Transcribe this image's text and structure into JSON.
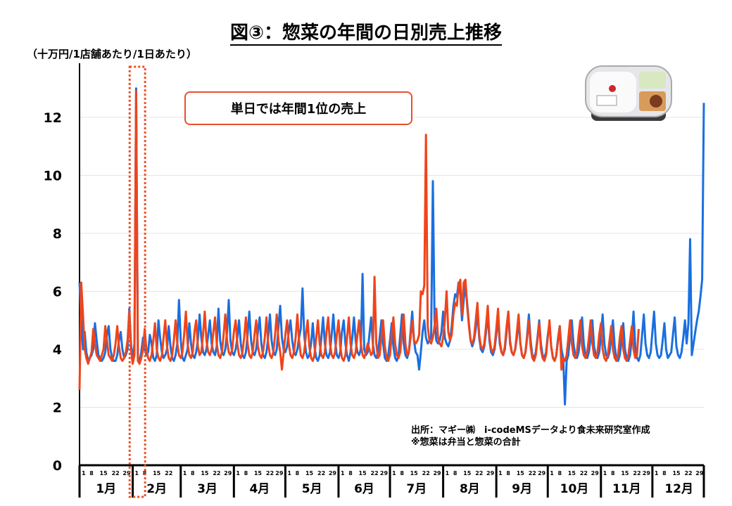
{
  "title": "図③：惣菜の年間の日別売上推移",
  "unit_label": "（十万円/1店舗あたり/1日あたり）",
  "annotation": "単日では年間1位の売上",
  "source": {
    "line1": "出所：マギー㈱　i-codeMSデータより食未来研究室作成",
    "line2": "※惣菜は弁当と惣菜の合計"
  },
  "colors": {
    "blue": "#1a6fe0",
    "orange": "#f0441a",
    "highlight": "#e8502a"
  },
  "chart_data": {
    "type": "line",
    "title": "図③：惣菜の年間の日別売上推移",
    "ylabel": "（十万円/1店舗あたり/1日あたり）",
    "xlabel": "",
    "ylim": [
      0,
      13.2
    ],
    "yticks": [
      0,
      2,
      4,
      6,
      8,
      10,
      12
    ],
    "xlim": [
      1,
      365
    ],
    "grid": "horizontal-faint",
    "legend": "none",
    "months": [
      "1月",
      "2月",
      "3月",
      "4月",
      "5月",
      "6月",
      "7月",
      "8月",
      "9月",
      "10月",
      "11月",
      "12月"
    ],
    "month_start_days": [
      1,
      32,
      60,
      91,
      121,
      152,
      182,
      213,
      244,
      274,
      305,
      335
    ],
    "day_tick_labels": [
      "1",
      "8",
      "15",
      "22",
      "29"
    ],
    "highlight_days": [
      29,
      38
    ],
    "series": [
      {
        "name": "blue",
        "color": "#1a6fe0",
        "values": [
          6.3,
          5.0,
          4.0,
          4.6,
          3.9,
          3.6,
          3.7,
          3.8,
          4.0,
          4.9,
          4.3,
          3.8,
          3.7,
          3.6,
          3.7,
          3.9,
          4.5,
          4.8,
          4.0,
          3.7,
          3.6,
          3.6,
          3.8,
          4.3,
          4.6,
          4.0,
          3.7,
          3.8,
          4.0,
          5.4,
          4.2,
          3.6,
          4.2,
          13.0,
          3.7,
          3.6,
          3.9,
          4.4,
          4.0,
          3.8,
          3.9,
          4.5,
          4.2,
          3.7,
          3.6,
          3.8,
          5.0,
          4.4,
          3.9,
          3.7,
          3.8,
          4.0,
          4.8,
          4.1,
          3.7,
          3.6,
          3.8,
          4.2,
          5.7,
          4.3,
          3.7,
          3.6,
          3.8,
          4.0,
          4.9,
          4.2,
          3.8,
          3.7,
          3.9,
          4.3,
          5.2,
          4.4,
          3.9,
          3.8,
          4.0,
          4.5,
          5.0,
          4.2,
          3.9,
          3.8,
          4.1,
          5.4,
          4.3,
          3.9,
          3.8,
          4.0,
          4.6,
          5.7,
          4.3,
          3.9,
          3.8,
          4.0,
          4.4,
          5.0,
          4.2,
          3.8,
          3.7,
          3.9,
          4.5,
          5.3,
          4.3,
          3.9,
          3.8,
          4.0,
          4.6,
          5.1,
          4.2,
          3.8,
          3.7,
          3.9,
          4.4,
          5.2,
          4.3,
          3.9,
          3.8,
          4.0,
          4.8,
          5.5,
          4.4,
          4.0,
          3.9,
          4.1,
          4.6,
          5.0,
          4.3,
          3.9,
          3.8,
          4.0,
          4.4,
          4.7,
          6.1,
          4.5,
          3.9,
          3.7,
          3.8,
          4.2,
          4.9,
          4.1,
          3.7,
          3.6,
          3.8,
          4.4,
          5.1,
          4.2,
          3.8,
          3.7,
          3.9,
          4.5,
          5.2,
          4.3,
          3.8,
          3.7,
          3.9,
          4.6,
          5.0,
          4.2,
          3.8,
          3.6,
          3.9,
          4.4,
          5.1,
          4.3,
          3.9,
          3.8,
          4.0,
          6.6,
          4.0,
          3.8,
          3.9,
          4.5,
          5.1,
          4.2,
          3.8,
          3.7,
          3.9,
          4.4,
          5.0,
          4.2,
          3.7,
          3.6,
          3.8,
          4.3,
          4.9,
          4.1,
          3.7,
          3.6,
          3.8,
          4.5,
          5.2,
          4.2,
          3.8,
          3.7,
          3.9,
          4.6,
          5.3,
          4.3,
          3.9,
          3.8,
          3.3,
          3.9,
          4.6,
          5.0,
          4.4,
          4.2,
          4.3,
          4.4,
          9.8,
          5.0,
          4.3,
          4.2,
          4.3,
          4.6,
          5.3,
          4.4,
          4.2,
          4.1,
          4.3,
          4.8,
          5.5,
          5.9,
          5.8,
          6.3,
          5.9,
          5.0,
          5.7,
          6.2,
          5.6,
          4.9,
          4.3,
          4.1,
          4.3,
          4.7,
          5.3,
          4.4,
          4.0,
          3.9,
          4.1,
          4.6,
          5.2,
          4.3,
          3.9,
          3.8,
          4.0,
          4.5,
          5.1,
          4.2,
          3.9,
          3.8,
          4.0,
          4.6,
          5.3,
          4.3,
          3.9,
          3.8,
          4.0,
          4.4,
          5.0,
          4.2,
          3.8,
          3.7,
          3.9,
          4.5,
          5.2,
          4.3,
          3.8,
          3.7,
          3.9,
          4.4,
          5.0,
          4.2,
          3.8,
          3.7,
          3.9,
          4.5,
          4.9,
          4.1,
          3.7,
          3.6,
          3.8,
          4.4,
          4.8,
          4.0,
          3.7,
          2.1,
          3.6,
          3.8,
          4.5,
          5.0,
          4.2,
          3.8,
          3.7,
          3.9,
          4.5,
          5.1,
          4.2,
          3.8,
          3.7,
          3.9,
          4.4,
          5.0,
          4.1,
          3.8,
          3.7,
          3.9,
          4.5,
          5.2,
          4.2,
          3.8,
          3.7,
          3.9,
          4.4,
          5.0,
          4.1,
          3.7,
          3.6,
          3.8,
          4.3,
          4.9,
          4.0,
          3.7,
          3.6,
          3.8,
          4.4,
          5.3,
          4.1,
          3.7,
          3.6,
          3.8,
          4.5,
          5.2,
          4.2,
          3.8,
          3.7,
          3.9,
          4.6,
          5.3,
          4.2,
          3.8,
          3.7,
          3.8,
          4.3,
          4.9,
          4.0,
          3.7,
          3.8,
          3.9,
          4.5,
          5.1,
          4.1,
          3.8,
          3.7,
          3.9,
          4.4,
          5.0,
          4.2,
          4.9,
          7.8,
          3.8,
          4.2,
          4.6,
          5.0,
          5.3,
          5.8,
          6.4,
          12.5
        ]
      },
      {
        "name": "orange",
        "color": "#f0441a",
        "values": [
          2.6,
          6.3,
          5.2,
          4.0,
          3.7,
          3.5,
          3.7,
          3.9,
          4.7,
          4.2,
          3.8,
          3.7,
          3.6,
          3.8,
          4.0,
          4.8,
          4.3,
          3.8,
          3.7,
          3.6,
          3.8,
          4.2,
          4.8,
          4.1,
          3.7,
          3.6,
          3.7,
          3.9,
          4.3,
          5.3,
          4.0,
          3.5,
          3.8,
          12.9,
          3.6,
          3.5,
          3.7,
          4.0,
          4.7,
          4.0,
          3.7,
          3.6,
          3.8,
          4.3,
          4.9,
          4.0,
          3.7,
          3.6,
          3.8,
          4.4,
          5.0,
          4.1,
          3.7,
          3.6,
          3.8,
          4.3,
          5.0,
          4.2,
          3.8,
          3.7,
          3.9,
          4.5,
          5.3,
          4.2,
          3.8,
          3.7,
          3.9,
          4.6,
          5.0,
          4.1,
          3.8,
          3.9,
          4.5,
          5.3,
          4.3,
          3.9,
          3.8,
          4.0,
          4.6,
          5.1,
          4.2,
          3.8,
          3.7,
          3.9,
          4.5,
          5.2,
          4.3,
          3.9,
          3.8,
          4.0,
          4.6,
          5.0,
          4.2,
          3.8,
          3.7,
          3.9,
          4.4,
          5.1,
          4.2,
          3.8,
          3.7,
          3.9,
          4.5,
          5.0,
          4.1,
          3.8,
          3.7,
          3.9,
          4.4,
          5.1,
          4.2,
          3.8,
          3.7,
          3.9,
          4.5,
          5.2,
          4.3,
          3.9,
          3.3,
          3.9,
          4.5,
          5.0,
          4.2,
          3.8,
          3.7,
          3.9,
          4.4,
          5.2,
          4.3,
          3.8,
          3.7,
          3.9,
          4.5,
          5.0,
          4.1,
          3.7,
          3.6,
          3.8,
          4.4,
          5.0,
          4.2,
          3.8,
          3.7,
          3.9,
          4.6,
          5.1,
          4.2,
          3.8,
          3.7,
          3.9,
          4.5,
          5.0,
          4.1,
          3.7,
          3.6,
          3.8,
          4.4,
          5.1,
          4.2,
          3.8,
          3.7,
          3.9,
          4.5,
          5.0,
          4.2,
          3.8,
          3.7,
          3.9,
          4.2,
          4.0,
          3.8,
          3.9,
          6.5,
          4.2,
          3.7,
          3.8,
          4.4,
          5.0,
          4.1,
          3.7,
          3.6,
          3.8,
          4.5,
          5.1,
          4.2,
          3.8,
          3.7,
          3.9,
          4.6,
          5.2,
          4.2,
          3.8,
          3.9,
          4.4,
          5.0,
          4.3,
          4.2,
          4.3,
          4.5,
          6.0,
          5.9,
          6.2,
          11.4,
          4.8,
          4.3,
          4.2,
          4.4,
          4.8,
          5.4,
          4.4,
          4.2,
          4.1,
          4.4,
          5.0,
          6.0,
          4.6,
          4.3,
          4.5,
          5.2,
          5.6,
          5.5,
          6.2,
          6.4,
          5.2,
          6.3,
          6.4,
          5.5,
          4.8,
          4.3,
          4.2,
          4.4,
          5.0,
          5.6,
          4.5,
          4.1,
          4.0,
          4.2,
          4.8,
          5.5,
          4.4,
          4.0,
          3.9,
          4.1,
          4.7,
          5.4,
          4.3,
          3.9,
          3.8,
          4.1,
          4.8,
          5.3,
          4.2,
          3.9,
          3.8,
          4.0,
          4.6,
          5.2,
          4.2,
          3.8,
          3.7,
          3.9,
          4.4,
          5.0,
          4.1,
          3.7,
          3.6,
          3.8,
          4.3,
          4.9,
          4.0,
          3.7,
          3.6,
          3.8,
          4.4,
          5.0,
          4.1,
          3.7,
          3.6,
          3.8,
          4.3,
          4.8,
          3.3,
          3.7,
          3.6,
          3.8,
          4.4,
          5.0,
          4.2,
          3.8,
          3.7,
          3.9,
          4.5,
          5.0,
          4.1,
          3.8,
          3.7,
          3.9,
          4.4,
          5.0,
          4.2,
          3.8,
          3.7,
          3.9,
          4.5,
          4.9,
          4.0,
          3.7,
          3.6,
          3.8,
          4.3,
          4.8,
          4.0,
          3.7,
          3.6,
          3.8,
          4.4,
          4.8,
          4.0,
          3.7,
          3.6,
          3.8,
          4.3,
          4.8,
          4.0,
          3.7,
          3.8,
          4.7
        ]
      }
    ]
  }
}
